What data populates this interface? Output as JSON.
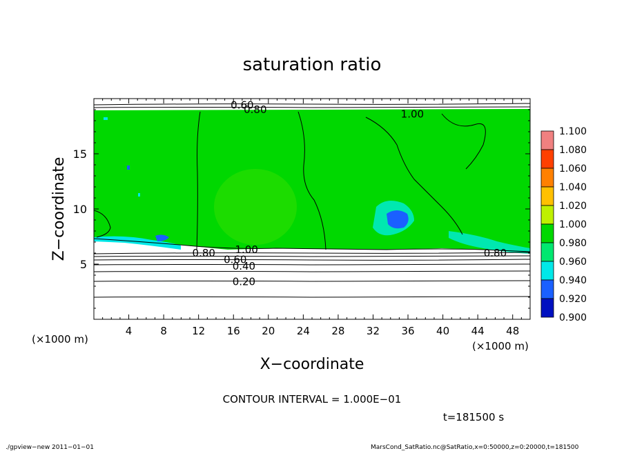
{
  "chart_data": {
    "type": "heatmap",
    "title": "saturation ratio",
    "xlabel": "X−coordinate",
    "ylabel": "Z−coordinate",
    "x_unit_left": "(×1000 m)",
    "x_unit_right": "(×1000 m)",
    "xlim": [
      0,
      50
    ],
    "ylim": [
      0,
      20
    ],
    "x_ticks": [
      4,
      8,
      12,
      16,
      20,
      24,
      28,
      32,
      36,
      40,
      44,
      48
    ],
    "y_ticks": [
      5,
      10,
      15
    ],
    "colorbar": {
      "levels": [
        "1.100",
        "1.080",
        "1.060",
        "1.040",
        "1.020",
        "1.000",
        "0.980",
        "0.960",
        "0.940",
        "0.920",
        "0.900"
      ],
      "colors": [
        "#f08080",
        "#ff4000",
        "#ff8000",
        "#ffc000",
        "#bff000",
        "#00d800",
        "#00e870",
        "#00e8e8",
        "#1a60ff",
        "#0010c0",
        "#5000a0"
      ]
    },
    "contour_labels": [
      {
        "text": "0.60",
        "x": 17.0,
        "y": 19.4
      },
      {
        "text": "0.80",
        "x": 18.5,
        "y": 19.0
      },
      {
        "text": "1.00",
        "x": 36.5,
        "y": 18.6
      },
      {
        "text": "1.00",
        "x": 17.5,
        "y": 6.3
      },
      {
        "text": "0.80",
        "x": 12.6,
        "y": 6.0
      },
      {
        "text": "0.60",
        "x": 16.2,
        "y": 5.4
      },
      {
        "text": "0.40",
        "x": 17.2,
        "y": 4.8
      },
      {
        "text": "0.20",
        "x": 17.2,
        "y": 3.4
      },
      {
        "text": "0.80",
        "x": 46.0,
        "y": 6.0
      }
    ],
    "contour_interval_text": "CONTOUR INTERVAL = 1.000E−01",
    "time_text": "t=181500 s"
  },
  "footer": {
    "left": "./gpview−new  2011−01−01",
    "right": "MarsCond_SatRatio.nc@SatRatio,x=0:50000,z=0:20000,t=181500"
  },
  "colors": {
    "field_green": "#00d800",
    "background": "#ffffff",
    "line": "#000000"
  }
}
